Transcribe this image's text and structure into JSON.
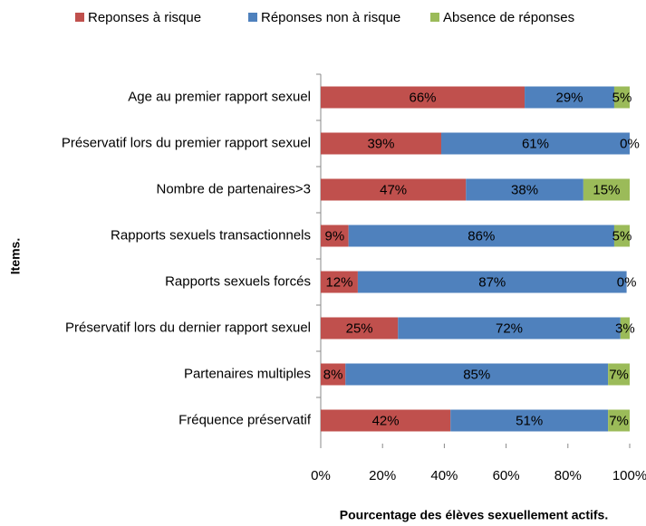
{
  "chart_data": {
    "type": "stacked_barh",
    "x_axis_label": "Pourcentage des élèves sexuellement actifs.",
    "y_axis_label": "Items.",
    "categories": [
      "Age au premier rapport sexuel",
      "Préservatif lors du premier rapport sexuel",
      "Nombre de partenaires>3",
      "Rapports sexuels transactionnels",
      "Rapports sexuels forcés",
      "Préservatif lors du dernier rapport sexuel",
      "Partenaires multiples",
      "Fréquence préservatif"
    ],
    "series": [
      {
        "name": "Reponses à risque",
        "color": "#c0504d",
        "values": [
          66,
          39,
          47,
          9,
          12,
          25,
          8,
          42
        ],
        "value_labels": [
          "66%",
          "39%",
          "47%",
          "9%",
          "12%",
          "25%",
          "8%",
          "42%"
        ]
      },
      {
        "name": "Réponses non à risque",
        "color": "#4f81bd",
        "values": [
          29,
          61,
          38,
          86,
          87,
          72,
          85,
          51
        ],
        "value_labels": [
          "29%",
          "61%",
          "38%",
          "86%",
          "87%",
          "72%",
          "85%",
          "51%"
        ]
      },
      {
        "name": "Absence de réponses",
        "color": "#9bbb59",
        "values": [
          5,
          0,
          15,
          5,
          0,
          3,
          7,
          7
        ],
        "value_labels": [
          "5%",
          "0%",
          "15%",
          "5%",
          "0%",
          "3%",
          "7%",
          "7%"
        ]
      }
    ],
    "xlim": [
      0,
      100
    ],
    "xticks": [
      {
        "value": 0,
        "label": "0%"
      },
      {
        "value": 20,
        "label": "20%"
      },
      {
        "value": 40,
        "label": "40%"
      },
      {
        "value": 60,
        "label": "60%"
      },
      {
        "value": 80,
        "label": "80%"
      },
      {
        "value": 100,
        "label": "100%"
      }
    ],
    "legend": "top",
    "grid": false
  }
}
